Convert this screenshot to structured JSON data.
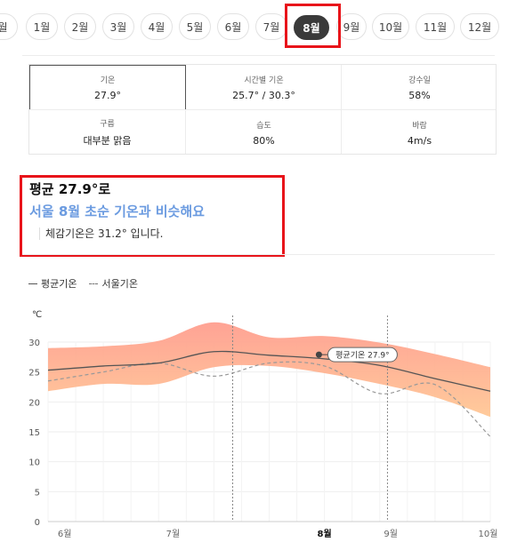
{
  "months": {
    "items": [
      "월",
      "1월",
      "2월",
      "3월",
      "4월",
      "5월",
      "6월",
      "7월",
      "8월",
      "9월",
      "10월",
      "11월",
      "12월"
    ],
    "selected": "8월"
  },
  "stats": [
    {
      "label": "기온",
      "value": "27.9°"
    },
    {
      "label": "시간별 기온",
      "value": "25.7° / 30.3°"
    },
    {
      "label": "강수일",
      "value": "58%"
    },
    {
      "label": "구름",
      "value": "대부분 맑음"
    },
    {
      "label": "습도",
      "value": "80%"
    },
    {
      "label": "바람",
      "value": "4m/s"
    }
  ],
  "summary": {
    "title": "평균 27.9°로",
    "subtitle": "서울 8월 초순 기온과 비슷해요",
    "note": "체감기온은 31.2° 입니다."
  },
  "legend": {
    "avg": "평균기온",
    "seoul": "서울기온"
  },
  "colors": {
    "accent": "#6b9be0",
    "highlight": "#e8141a",
    "band_top": "#ff9e8f",
    "band_bottom": "#ffc896"
  },
  "chart_data": {
    "type": "area",
    "ylabel": "℃",
    "ylim": [
      0,
      30
    ],
    "yticks": [
      0,
      5,
      10,
      15,
      20,
      25,
      30
    ],
    "xlabels": [
      "6월",
      "7월",
      "8월",
      "9월",
      "10월"
    ],
    "xlabel_bold": "8월",
    "x": [
      0,
      0.5,
      1,
      1.5,
      2,
      2.5,
      3,
      3.5,
      4
    ],
    "series": [
      {
        "name": "평균기온",
        "values": [
          25.3,
          26.0,
          26.5,
          28.4,
          27.8,
          27.2,
          26.1,
          23.9,
          21.8
        ]
      },
      {
        "name": "서울기온",
        "values": [
          23.5,
          25.0,
          26.5,
          24.3,
          26.5,
          26.0,
          21.4,
          22.9,
          14.2
        ]
      }
    ],
    "band": {
      "upper": [
        29.0,
        29.3,
        30.2,
        33.3,
        30.8,
        31.0,
        29.9,
        28.0,
        25.8
      ],
      "lower": [
        21.8,
        23.0,
        23.0,
        25.8,
        26.0,
        24.8,
        23.0,
        20.8,
        17.5
      ]
    },
    "vlines": [
      1.67,
      3.07
    ],
    "annotation": {
      "x": 2.45,
      "y": 27.9,
      "text": "평균기온 27.9°"
    }
  }
}
